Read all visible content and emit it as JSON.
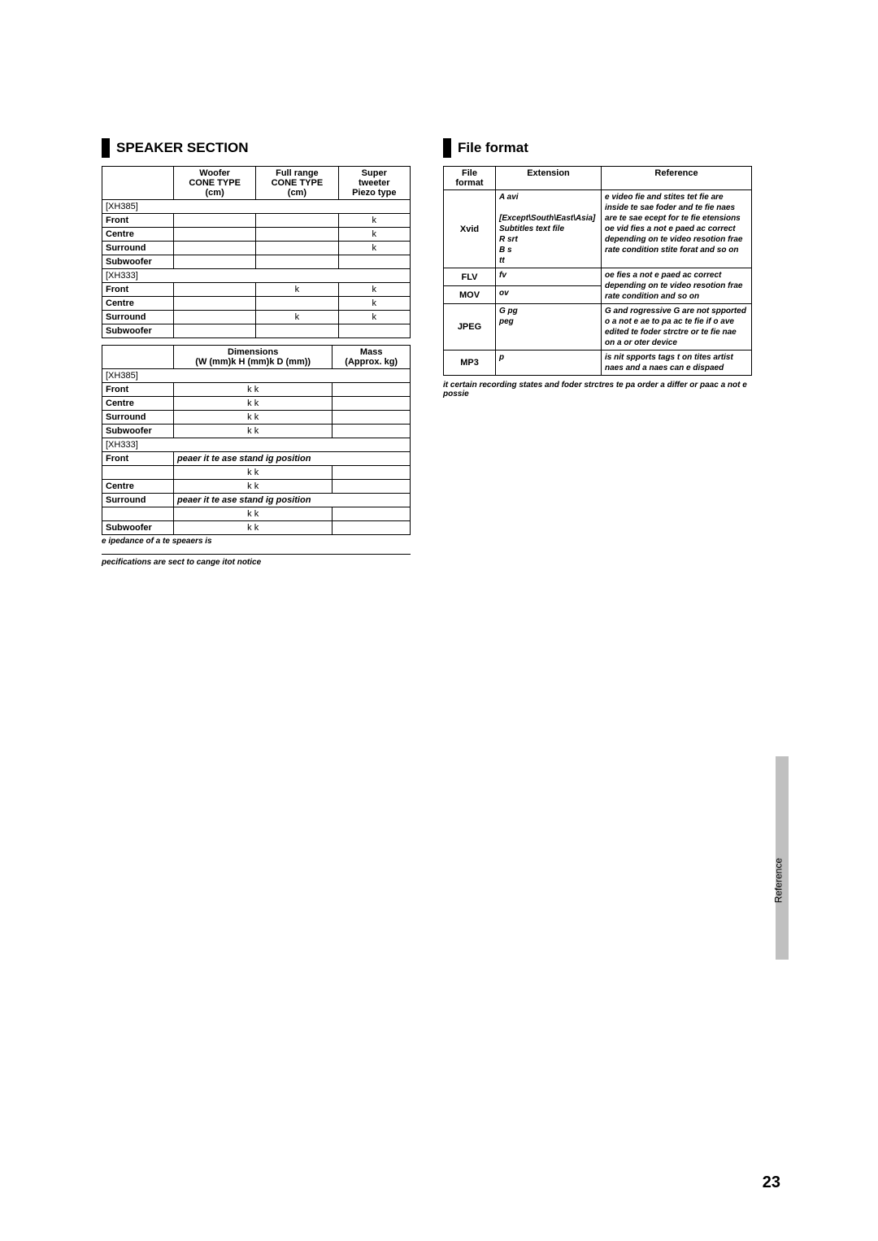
{
  "page": {
    "number": "23",
    "side_tab": "Reference"
  },
  "speaker_section": {
    "title": "SPEAKER SECTION",
    "table1": {
      "headers": [
        "",
        "Woofer\nCONE TYPE\n(cm)",
        "Full range\nCONE TYPE\n(cm)",
        "Super\ntweeter\nPiezo type"
      ],
      "rows": [
        {
          "model": "[XH385]"
        },
        {
          "label": "Front",
          "v": [
            "",
            "",
            "k"
          ]
        },
        {
          "label": "Centre",
          "v": [
            "",
            "",
            "k"
          ]
        },
        {
          "label": "Surround",
          "v": [
            "",
            "",
            "k"
          ]
        },
        {
          "label": "Subwoofer",
          "v": [
            "",
            "",
            ""
          ]
        },
        {
          "model": "[XH333]"
        },
        {
          "label": "Front",
          "v": [
            "",
            "k",
            "k"
          ]
        },
        {
          "label": "Centre",
          "v": [
            "",
            "",
            "k"
          ]
        },
        {
          "label": "Surround",
          "v": [
            "",
            "k",
            "k"
          ]
        },
        {
          "label": "Subwoofer",
          "v": [
            "",
            "",
            ""
          ]
        }
      ]
    },
    "table2": {
      "headers": [
        "",
        "Dimensions\n(W (mm)k H (mm)k D (mm))",
        "Mass\n(Approx. kg)"
      ],
      "rows": [
        {
          "model": "[XH385]"
        },
        {
          "label": "Front",
          "v": [
            "k k",
            ""
          ]
        },
        {
          "label": "Centre",
          "v": [
            "k k",
            ""
          ]
        },
        {
          "label": "Surround",
          "v": [
            "k k",
            ""
          ]
        },
        {
          "label": "Subwoofer",
          "v": [
            "k k",
            ""
          ]
        },
        {
          "model": "[XH333]"
        },
        {
          "label": "Front",
          "span": "peaer it te ase stand ig position"
        },
        {
          "label": "",
          "v": [
            "k k",
            ""
          ]
        },
        {
          "label": "Centre",
          "v": [
            "k k",
            ""
          ]
        },
        {
          "label": "Surround",
          "span": "peaer it te ase stand ig position"
        },
        {
          "label": "",
          "v": [
            "k k",
            ""
          ]
        },
        {
          "label": "Subwoofer",
          "v": [
            "k k",
            ""
          ]
        }
      ]
    },
    "impedance_note": "e ipedance of a te speaers is",
    "spec_note": "pecifications are sect to cange itot notice"
  },
  "file_format": {
    "title": "File format",
    "headers": [
      "File format",
      "Extension",
      "Reference"
    ],
    "rows": [
      {
        "fmt": "Xvid",
        "ext": "A avi\n\n[Except\\South\\East\\Asia]\nSubtitles text file\nR srt\nB s\ntt",
        "ref": "e video fie and stites tet fie are inside te sae foder and te fie naes are te sae ecept for te fie etensions\noe vid fies a not e paed ac correct depending on te video resotion frae rate condition stite forat and so on"
      },
      {
        "fmt": "FLV",
        "ext": "fv",
        "ref": "oe fies a not e paed ac correct depending on te video resotion frae rate condition and so on",
        "merge_below": true
      },
      {
        "fmt": "MOV",
        "ext": "ov",
        "ref": ""
      },
      {
        "fmt": "JPEG",
        "ext": "G pg\npeg",
        "ref": "G and rogressive G are not spported\no a not e ae to pa ac te fie if o ave edited te foder strctre or te fie nae on a  or oter device"
      },
      {
        "fmt": "MP3",
        "ext": "p",
        "ref": "is nit spports tags t on tites artist naes and a naes can e dispaed"
      }
    ],
    "footnote": "it certain recording states and foder strctres te pa order a differ or paac a not e possie"
  },
  "colors": {
    "black": "#000000",
    "tab_gray": "#c0c0c0",
    "white": "#ffffff"
  }
}
